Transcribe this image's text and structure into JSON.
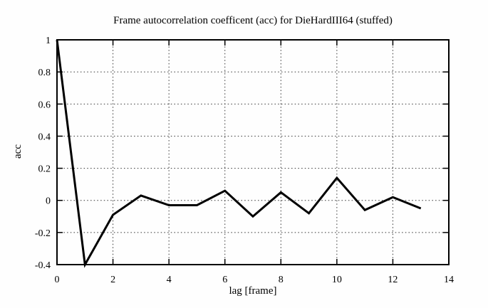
{
  "page": {
    "background": "#ffffff",
    "foreground": "#000000"
  },
  "chart_data": {
    "type": "line",
    "title": "Frame autocorrelation coefficent (acc) for DieHardIII64 (stuffed)",
    "xlabel": "lag [frame]",
    "ylabel": "acc",
    "x": [
      0,
      1,
      2,
      3,
      4,
      5,
      6,
      7,
      8,
      9,
      10,
      11,
      12,
      13
    ],
    "y": [
      1.0,
      -0.4,
      -0.09,
      0.03,
      -0.03,
      -0.03,
      0.06,
      -0.1,
      0.05,
      -0.08,
      0.14,
      -0.06,
      0.02,
      -0.05
    ],
    "xlim": [
      0,
      14
    ],
    "ylim": [
      -0.4,
      1
    ],
    "x_ticks": [
      0,
      2,
      4,
      6,
      8,
      10,
      12,
      14
    ],
    "x_tick_labels": [
      "0",
      "2",
      "4",
      "6",
      "8",
      "10",
      "12",
      "14"
    ],
    "y_ticks": [
      -0.4,
      -0.2,
      0,
      0.2,
      0.4,
      0.6,
      0.8,
      1
    ],
    "y_tick_labels": [
      "-0.4",
      "-0.2",
      "0",
      "0.2",
      "0.4",
      "0.6",
      "0.8",
      "1"
    ],
    "grid": true,
    "grid_style": "dotted",
    "legend": "none",
    "line_color": "#000000",
    "grid_color": "#333333",
    "axis_color": "#000000"
  }
}
